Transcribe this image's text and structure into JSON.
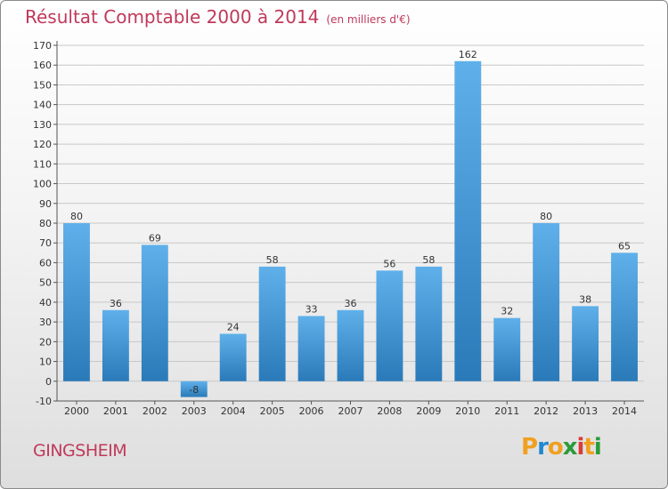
{
  "header": {
    "title": "Résultat Comptable 2000 à 2014",
    "subtitle": "(en milliers d'€)"
  },
  "footer": {
    "commune": "GINGSHEIM",
    "logo_letters": [
      "P",
      "r",
      "o",
      "x",
      "i",
      "t",
      "i"
    ],
    "logo_colors": [
      "#f0a020",
      "#1e88d0",
      "#f0a020",
      "#2a9b3a",
      "#d83a3a",
      "#f0a020",
      "#2a9b3a"
    ]
  },
  "chart_data": {
    "type": "bar",
    "categories": [
      "2000",
      "2001",
      "2002",
      "2003",
      "2004",
      "2005",
      "2006",
      "2007",
      "2008",
      "2009",
      "2010",
      "2011",
      "2012",
      "2013",
      "2014"
    ],
    "values": [
      80,
      36,
      69,
      -8,
      24,
      58,
      33,
      36,
      56,
      58,
      162,
      32,
      80,
      38,
      65
    ],
    "data_labels": [
      "80",
      "36",
      "69",
      "-8",
      "24",
      "58",
      "33",
      "36",
      "56",
      "58",
      "162",
      "32",
      "80",
      "38",
      "65"
    ],
    "ylim": [
      -10,
      170
    ],
    "yticks": [
      "-10",
      "0",
      "10",
      "20",
      "30",
      "40",
      "50",
      "60",
      "70",
      "80",
      "90",
      "100",
      "110",
      "120",
      "130",
      "140",
      "150",
      "160",
      "170"
    ],
    "grid": true,
    "bar_color_light": "#5fb0ea",
    "bar_color_dark": "#2a7ab9",
    "title_color": "#c0395a"
  }
}
